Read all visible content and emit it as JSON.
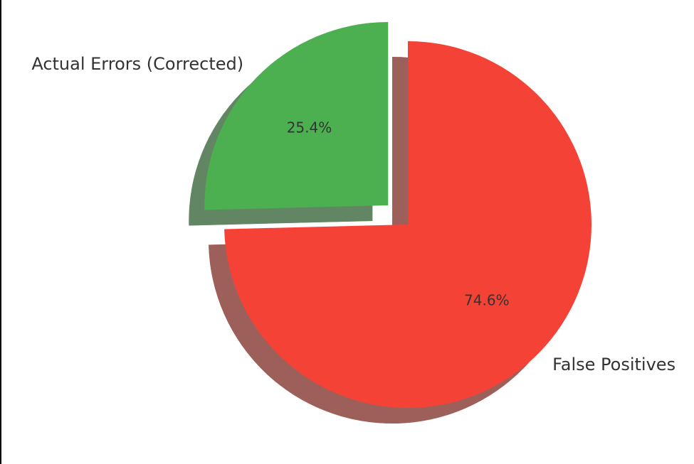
{
  "chart_data": {
    "type": "pie",
    "categories": [
      "Actual Errors (Corrected)",
      "False Positives"
    ],
    "values": [
      25.4,
      74.6
    ],
    "value_labels": [
      "25.4%",
      "74.6%"
    ],
    "colors": [
      "#4caf50",
      "#f44336"
    ],
    "explode": [
      0.15,
      0
    ],
    "startangle": 90,
    "shadow": true
  }
}
